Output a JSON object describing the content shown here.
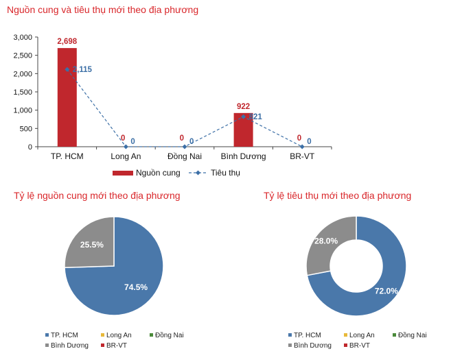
{
  "titles": {
    "main": "Nguồn cung và tiêu thụ mới theo địa phương",
    "pie_supply": "Tỷ lệ nguồn cung mới theo địa phương",
    "pie_consumption": "Tỷ lệ tiêu thụ mới theo địa phương"
  },
  "colors": {
    "bar": "#c0272d",
    "line": "#3c6fa6",
    "title": "#d9262a",
    "pie_hcm": "#4a78aa",
    "pie_longan": "#e8b93a",
    "pie_dongnai": "#4a8a3a",
    "pie_binhduong": "#8c8c8c",
    "pie_brvt": "#c0272d"
  },
  "chart_data": [
    {
      "type": "bar",
      "title": "Nguồn cung và tiêu thụ mới theo địa phương",
      "categories": [
        "TP. HCM",
        "Long An",
        "Đồng  Nai",
        "Bình Dương",
        "BR-VT"
      ],
      "series": [
        {
          "name": "Nguồn cung",
          "type": "bar",
          "values": [
            2698,
            0,
            0,
            922,
            0
          ],
          "labels": [
            "2,698",
            "0",
            "0",
            "922",
            "0"
          ]
        },
        {
          "name": "Tiêu thụ",
          "type": "line",
          "values": [
            2115,
            0,
            0,
            821,
            0
          ],
          "labels": [
            "2,115",
            "0",
            "0",
            "821",
            "0"
          ]
        }
      ],
      "ylim": [
        0,
        3000
      ],
      "yticks": [
        0,
        500,
        1000,
        1500,
        2000,
        2500,
        3000
      ],
      "ytick_labels": [
        "0",
        "500",
        "1,000",
        "1,500",
        "2,000",
        "2,500",
        "3,000"
      ],
      "grid": false,
      "legend_position": "bottom"
    },
    {
      "type": "pie",
      "title": "Tỷ lệ nguồn cung mới theo địa phương",
      "labels": [
        "TP. HCM",
        "Long An",
        "Đồng Nai",
        "Bình Dương",
        "BR-VT"
      ],
      "values": [
        74.5,
        0,
        0,
        25.5,
        0
      ],
      "value_labels": [
        "74.5%",
        "",
        "",
        "25.5%",
        ""
      ],
      "legend_position": "bottom"
    },
    {
      "type": "pie",
      "variant": "donut",
      "title": "Tỷ lệ tiêu thụ mới theo địa phương",
      "labels": [
        "TP. HCM",
        "Long An",
        "Đồng Nai",
        "Bình Dương",
        "BR-VT"
      ],
      "values": [
        72.0,
        0,
        0,
        28.0,
        0
      ],
      "value_labels": [
        "72.0%",
        "",
        "",
        "28.0%",
        ""
      ],
      "legend_position": "bottom"
    }
  ]
}
